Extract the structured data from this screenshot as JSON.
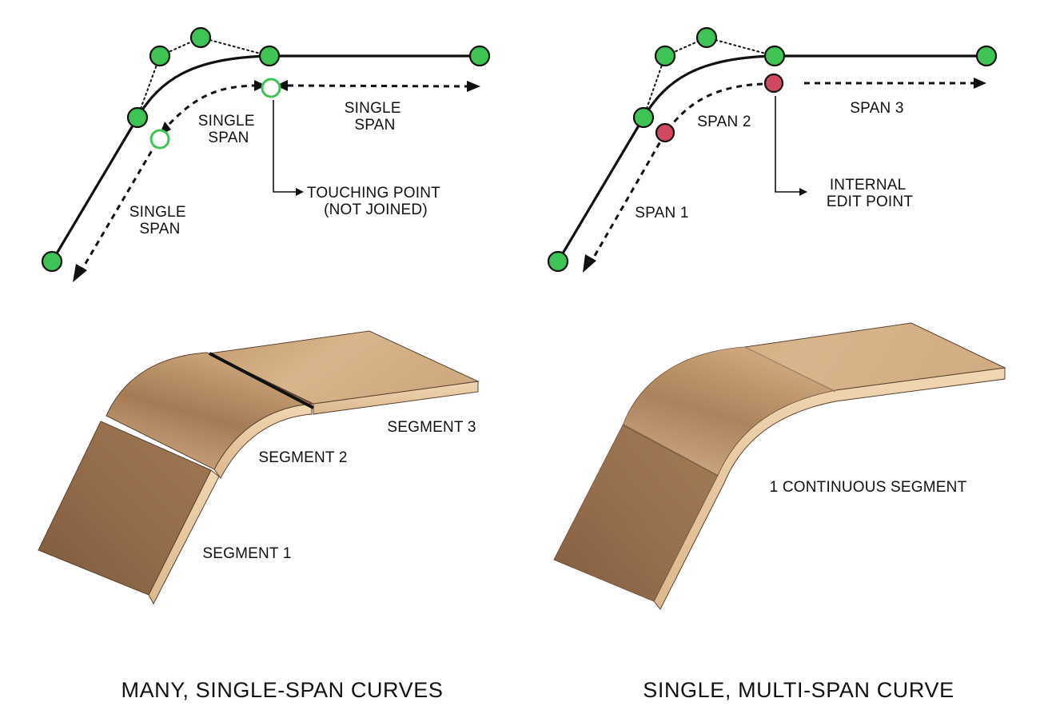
{
  "left_panel": {
    "caption": "MANY, SINGLE-SPAN CURVES",
    "span_label_1": [
      "SINGLE",
      "SPAN"
    ],
    "span_label_2": [
      "SINGLE",
      "SPAN"
    ],
    "span_label_3": [
      "SINGLE",
      "SPAN"
    ],
    "callout": [
      "TOUCHING POINT",
      "(NOT JOINED)"
    ],
    "segments": [
      "SEGMENT 1",
      "SEGMENT 2",
      "SEGMENT 3"
    ]
  },
  "right_panel": {
    "caption": "SINGLE, MULTI-SPAN CURVE",
    "span_labels": [
      "SPAN 1",
      "SPAN 2",
      "SPAN 3"
    ],
    "callout": [
      "INTERNAL",
      "EDIT POINT"
    ],
    "segment_label": "1 CONTINUOUS SEGMENT"
  },
  "colors": {
    "control_point": "#3ec454",
    "edit_point": "#cf4a5e",
    "wood_light": "#d9b48a",
    "wood_dark": "#8a6445",
    "wood_edge": "#e8c9a0"
  }
}
